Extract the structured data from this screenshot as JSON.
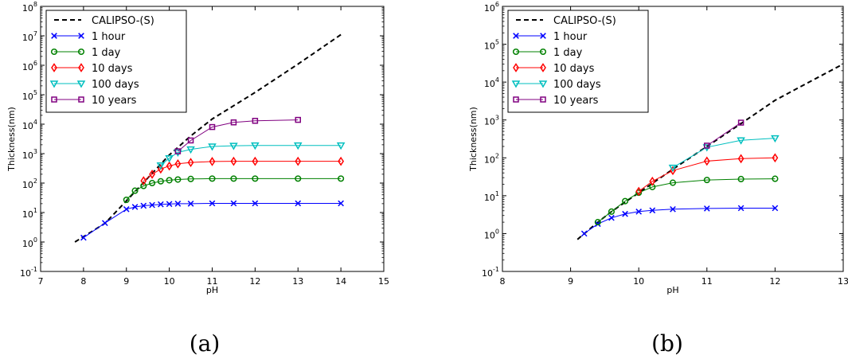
{
  "panel_labels": [
    "(a)",
    "(b)"
  ],
  "chart_data": [
    {
      "type": "line",
      "panel": "(a)",
      "xlabel": "pH",
      "ylabel": "Thickness(nm)",
      "xlim": [
        7,
        15
      ],
      "ylim": [
        0.1,
        100000000
      ],
      "yscale": "log",
      "xticks": [
        "7",
        "8",
        "9",
        "10",
        "11",
        "12",
        "13",
        "14",
        "15"
      ],
      "yticks": [
        {
          "base": "10",
          "exp": "-1"
        },
        {
          "base": "10",
          "exp": "0"
        },
        {
          "base": "10",
          "exp": "1"
        },
        {
          "base": "10",
          "exp": "2"
        },
        {
          "base": "10",
          "exp": "3"
        },
        {
          "base": "10",
          "exp": "4"
        },
        {
          "base": "10",
          "exp": "5"
        },
        {
          "base": "10",
          "exp": "6"
        },
        {
          "base": "10",
          "exp": "7"
        },
        {
          "base": "10",
          "exp": "8"
        }
      ],
      "grid": false,
      "legend": "top-left",
      "series": [
        {
          "name": "CALIPSO-(S)",
          "color": "#000000",
          "marker": "none",
          "dashed": true,
          "x": [
            7.8,
            8.5,
            9.0,
            9.5,
            10.0,
            10.5,
            11.0,
            12.0,
            13.0,
            14.0
          ],
          "y": [
            1.0,
            4.3,
            25,
            150,
            900,
            4000,
            15000,
            120000,
            1100000,
            11000000
          ]
        },
        {
          "name": "1 hour",
          "color": "#0000ff",
          "marker": "x",
          "x": [
            8.0,
            8.5,
            9.0,
            9.2,
            9.4,
            9.6,
            9.8,
            10.0,
            10.2,
            10.5,
            11.0,
            11.5,
            12.0,
            13.0,
            14.0
          ],
          "y": [
            1.4,
            4.4,
            13,
            15.5,
            17,
            18,
            19,
            19.5,
            20,
            20,
            20.5,
            20.5,
            20.5,
            20.5,
            20.5
          ]
        },
        {
          "name": "1 day",
          "color": "#008000",
          "marker": "o",
          "x": [
            9.0,
            9.2,
            9.4,
            9.6,
            9.8,
            10.0,
            10.2,
            10.5,
            11.0,
            11.5,
            12.0,
            13.0,
            14.0
          ],
          "y": [
            27,
            55,
            80,
            100,
            115,
            125,
            132,
            138,
            142,
            142,
            142,
            142,
            142
          ]
        },
        {
          "name": "10 days",
          "color": "#ff0000",
          "marker": "diamond",
          "x": [
            9.4,
            9.6,
            9.8,
            10.0,
            10.2,
            10.5,
            11.0,
            11.5,
            12.0,
            13.0,
            14.0
          ],
          "y": [
            120,
            200,
            300,
            380,
            450,
            500,
            540,
            550,
            550,
            550,
            550
          ]
        },
        {
          "name": "100 days",
          "color": "#00bfbf",
          "marker": "triangle-down",
          "x": [
            9.8,
            10.0,
            10.2,
            10.5,
            11.0,
            11.5,
            12.0,
            13.0,
            14.0
          ],
          "y": [
            400,
            700,
            1100,
            1400,
            1750,
            1850,
            1900,
            1900,
            1900
          ]
        },
        {
          "name": "10 years",
          "color": "#800080",
          "marker": "square",
          "x": [
            10.2,
            10.5,
            11.0,
            11.5,
            12.0,
            13.0
          ],
          "y": [
            1200,
            2800,
            8000,
            11500,
            13000,
            14000
          ]
        }
      ]
    },
    {
      "type": "line",
      "panel": "(b)",
      "xlabel": "pH",
      "ylabel": "Thickness(nm)",
      "xlim": [
        8,
        13
      ],
      "ylim": [
        0.1,
        1000000
      ],
      "yscale": "log",
      "xticks": [
        "8",
        "9",
        "10",
        "11",
        "12",
        "13"
      ],
      "yticks": [
        {
          "base": "10",
          "exp": "-1"
        },
        {
          "base": "10",
          "exp": "0"
        },
        {
          "base": "10",
          "exp": "1"
        },
        {
          "base": "10",
          "exp": "2"
        },
        {
          "base": "10",
          "exp": "3"
        },
        {
          "base": "10",
          "exp": "4"
        },
        {
          "base": "10",
          "exp": "5"
        },
        {
          "base": "10",
          "exp": "6"
        }
      ],
      "grid": false,
      "legend": "top-left",
      "series": [
        {
          "name": "CALIPSO-(S)",
          "color": "#000000",
          "marker": "none",
          "dashed": true,
          "x": [
            9.1,
            9.4,
            9.6,
            10.0,
            10.5,
            11.0,
            11.5,
            12.0,
            12.5,
            13.0
          ],
          "y": [
            0.7,
            2.0,
            3.8,
            12,
            50,
            200,
            800,
            3300,
            10000,
            30000
          ]
        },
        {
          "name": "1 hour",
          "color": "#0000ff",
          "marker": "x",
          "x": [
            9.2,
            9.4,
            9.6,
            9.8,
            10.0,
            10.2,
            10.5,
            11.0,
            11.5,
            12.0
          ],
          "y": [
            1.0,
            1.8,
            2.6,
            3.3,
            3.8,
            4.1,
            4.4,
            4.6,
            4.7,
            4.7
          ]
        },
        {
          "name": "1 day",
          "color": "#008000",
          "marker": "o",
          "x": [
            9.4,
            9.6,
            9.8,
            10.0,
            10.2,
            10.5,
            11.0,
            11.5,
            12.0
          ],
          "y": [
            2.0,
            3.8,
            7.2,
            12,
            17,
            22,
            26,
            27.5,
            28
          ]
        },
        {
          "name": "10 days",
          "color": "#ff0000",
          "marker": "diamond",
          "x": [
            10.0,
            10.2,
            10.5,
            11.0,
            11.5,
            12.0
          ],
          "y": [
            13,
            24,
            46,
            82,
            95,
            100
          ]
        },
        {
          "name": "100 days",
          "color": "#00bfbf",
          "marker": "triangle-down",
          "x": [
            10.5,
            11.0,
            11.5,
            12.0
          ],
          "y": [
            55,
            190,
            290,
            330
          ]
        },
        {
          "name": "10 years",
          "color": "#800080",
          "marker": "square",
          "x": [
            11.0,
            11.5
          ],
          "y": [
            210,
            850
          ]
        }
      ]
    }
  ]
}
